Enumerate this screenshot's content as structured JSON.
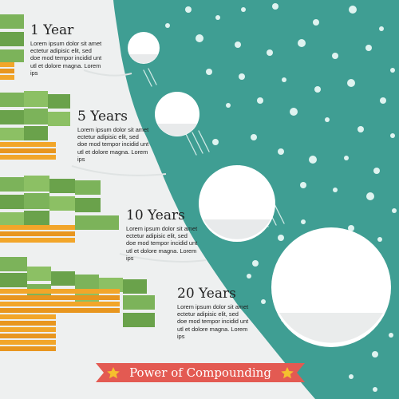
{
  "milestones": [
    {
      "title": "1 Year",
      "body": "Lorem ipsum dolor sit amet ectetur adipisic elit, sed doe mod tempor incidid unt utl et dolore magna. Lorem ips"
    },
    {
      "title": "5 Years",
      "body": "Lorem ipsum dolor sit amet ectetur adipisic elit, sed doe mod tempor incidid unt utl et dolore magna. Lorem ips"
    },
    {
      "title": "10 Years",
      "body": "Lorem ipsum dolor sit amet ectetur adipisic elit, sed doe mod tempor incidid unt utl et dolore magna. Lorem ips"
    },
    {
      "title": "20 Years",
      "body": "Lorem ipsum dolor sit amet ectetur adipisic elit, sed doe mod tempor incidid unt utl et dolore magna. Lorem ips"
    }
  ],
  "banner": {
    "label": "Power of Compounding"
  },
  "colors": {
    "hill": "#3f9e93",
    "background": "#eef0f0",
    "snowball": "#ffffff",
    "banner": "#e35a52",
    "banner_star": "#f5c02e",
    "cash": "#7cb35a",
    "coin": "#f2a62a"
  }
}
